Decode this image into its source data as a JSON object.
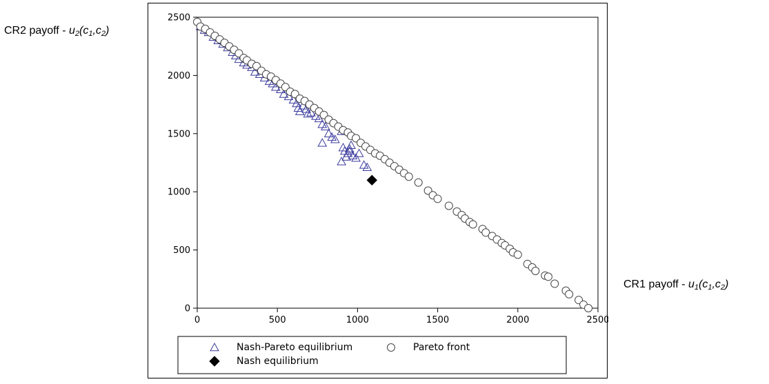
{
  "labels": {
    "y_prefix": "CR2 payoff - ",
    "y_func": "u",
    "y_sub": "2",
    "y_args_open": "(c",
    "y_args_sub1": "1",
    "y_args_sep": ",c",
    "y_args_sub2": "2",
    "y_args_close": ")",
    "x_prefix": "CR1 payoff - ",
    "x_func": "u",
    "x_sub": "1",
    "x_args_open": "(c",
    "x_args_sub1": "1",
    "x_args_sep": ",c",
    "x_args_sub2": "2",
    "x_args_close": ")"
  },
  "chart_data": {
    "type": "scatter",
    "xlim": [
      0,
      2500
    ],
    "ylim": [
      0,
      2500
    ],
    "xticks": [
      0,
      500,
      1000,
      1500,
      2000,
      2500
    ],
    "yticks": [
      0,
      500,
      1000,
      1500,
      2000,
      2500
    ],
    "grid": false,
    "legend_placement": "bottom",
    "colors": {
      "triangle": "#3b3b9e",
      "circle": "#444444",
      "diamond": "#000000"
    },
    "series": [
      {
        "name": "Nash-Pareto equilibrium",
        "marker": "triangle",
        "points": [
          [
            20,
            2420
          ],
          [
            45,
            2390
          ],
          [
            70,
            2370
          ],
          [
            100,
            2330
          ],
          [
            130,
            2300
          ],
          [
            160,
            2270
          ],
          [
            190,
            2240
          ],
          [
            220,
            2200
          ],
          [
            240,
            2170
          ],
          [
            260,
            2140
          ],
          [
            290,
            2110
          ],
          [
            310,
            2090
          ],
          [
            340,
            2070
          ],
          [
            360,
            2030
          ],
          [
            390,
            2010
          ],
          [
            420,
            1980
          ],
          [
            450,
            1950
          ],
          [
            470,
            1930
          ],
          [
            490,
            1900
          ],
          [
            520,
            1880
          ],
          [
            540,
            1840
          ],
          [
            570,
            1820
          ],
          [
            600,
            1790
          ],
          [
            620,
            1760
          ],
          [
            630,
            1720
          ],
          [
            640,
            1690
          ],
          [
            660,
            1740
          ],
          [
            680,
            1710
          ],
          [
            690,
            1670
          ],
          [
            710,
            1680
          ],
          [
            740,
            1650
          ],
          [
            760,
            1630
          ],
          [
            780,
            1580
          ],
          [
            800,
            1560
          ],
          [
            820,
            1500
          ],
          [
            840,
            1470
          ],
          [
            860,
            1450
          ],
          [
            780,
            1420
          ],
          [
            900,
            1520
          ],
          [
            910,
            1380
          ],
          [
            920,
            1350
          ],
          [
            930,
            1300
          ],
          [
            940,
            1330
          ],
          [
            950,
            1370
          ],
          [
            960,
            1400
          ],
          [
            970,
            1310
          ],
          [
            990,
            1290
          ],
          [
            1010,
            1330
          ],
          [
            1040,
            1230
          ],
          [
            1060,
            1210
          ],
          [
            900,
            1260
          ],
          [
            950,
            1350
          ]
        ]
      },
      {
        "name": "Pareto front",
        "marker": "circle",
        "points": [
          [
            0,
            2460
          ],
          [
            20,
            2420
          ],
          [
            50,
            2400
          ],
          [
            80,
            2370
          ],
          [
            110,
            2340
          ],
          [
            140,
            2310
          ],
          [
            170,
            2280
          ],
          [
            200,
            2250
          ],
          [
            230,
            2220
          ],
          [
            260,
            2190
          ],
          [
            290,
            2150
          ],
          [
            310,
            2130
          ],
          [
            340,
            2100
          ],
          [
            370,
            2080
          ],
          [
            400,
            2040
          ],
          [
            430,
            2010
          ],
          [
            460,
            1990
          ],
          [
            490,
            1960
          ],
          [
            520,
            1930
          ],
          [
            550,
            1900
          ],
          [
            580,
            1860
          ],
          [
            610,
            1840
          ],
          [
            640,
            1800
          ],
          [
            670,
            1780
          ],
          [
            700,
            1750
          ],
          [
            730,
            1720
          ],
          [
            760,
            1690
          ],
          [
            790,
            1660
          ],
          [
            820,
            1620
          ],
          [
            850,
            1590
          ],
          [
            880,
            1560
          ],
          [
            910,
            1530
          ],
          [
            940,
            1510
          ],
          [
            960,
            1480
          ],
          [
            990,
            1460
          ],
          [
            1020,
            1420
          ],
          [
            1050,
            1390
          ],
          [
            1080,
            1360
          ],
          [
            1110,
            1330
          ],
          [
            1140,
            1310
          ],
          [
            1170,
            1280
          ],
          [
            1200,
            1250
          ],
          [
            1230,
            1220
          ],
          [
            1260,
            1190
          ],
          [
            1290,
            1160
          ],
          [
            1320,
            1130
          ],
          [
            1380,
            1080
          ],
          [
            1440,
            1010
          ],
          [
            1470,
            970
          ],
          [
            1500,
            940
          ],
          [
            1570,
            880
          ],
          [
            1620,
            830
          ],
          [
            1650,
            800
          ],
          [
            1670,
            770
          ],
          [
            1700,
            740
          ],
          [
            1720,
            720
          ],
          [
            1780,
            680
          ],
          [
            1800,
            650
          ],
          [
            1840,
            620
          ],
          [
            1870,
            590
          ],
          [
            1900,
            560
          ],
          [
            1920,
            540
          ],
          [
            1950,
            510
          ],
          [
            1970,
            480
          ],
          [
            2000,
            460
          ],
          [
            2060,
            380
          ],
          [
            2090,
            350
          ],
          [
            2110,
            320
          ],
          [
            2170,
            280
          ],
          [
            2190,
            270
          ],
          [
            2230,
            210
          ],
          [
            2300,
            150
          ],
          [
            2320,
            120
          ],
          [
            2380,
            70
          ],
          [
            2410,
            30
          ],
          [
            2440,
            0
          ]
        ]
      },
      {
        "name": "Nash equilibrium",
        "marker": "diamond",
        "points": [
          [
            1090,
            1100
          ]
        ]
      }
    ]
  }
}
